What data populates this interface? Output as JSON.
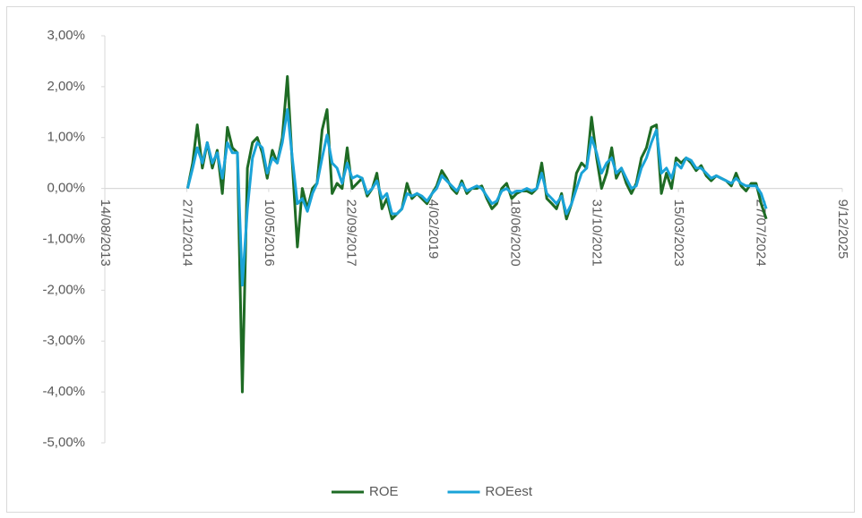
{
  "chart_data": {
    "type": "line",
    "x": [
      "2015-01-01",
      "2015-02-01",
      "2015-03-01",
      "2015-04-01",
      "2015-05-01",
      "2015-06-01",
      "2015-07-01",
      "2015-08-01",
      "2015-09-01",
      "2015-10-01",
      "2015-11-01",
      "2015-12-01",
      "2016-01-01",
      "2016-02-01",
      "2016-03-01",
      "2016-04-01",
      "2016-05-01",
      "2016-06-01",
      "2016-07-01",
      "2016-08-01",
      "2016-09-01",
      "2016-10-01",
      "2016-11-01",
      "2016-12-01",
      "2017-01-01",
      "2017-02-01",
      "2017-03-01",
      "2017-04-01",
      "2017-05-01",
      "2017-06-01",
      "2017-07-01",
      "2017-08-01",
      "2017-09-01",
      "2017-10-01",
      "2017-11-01",
      "2017-12-01",
      "2018-01-01",
      "2018-02-01",
      "2018-03-01",
      "2018-04-01",
      "2018-05-01",
      "2018-06-01",
      "2018-07-01",
      "2018-08-01",
      "2018-09-01",
      "2018-10-01",
      "2018-11-01",
      "2018-12-01",
      "2019-01-01",
      "2019-02-01",
      "2019-03-01",
      "2019-04-01",
      "2019-05-01",
      "2019-06-01",
      "2019-07-01",
      "2019-08-01",
      "2019-09-01",
      "2019-10-01",
      "2019-11-01",
      "2019-12-01",
      "2020-01-01",
      "2020-02-01",
      "2020-03-01",
      "2020-04-01",
      "2020-05-01",
      "2020-06-01",
      "2020-07-01",
      "2020-08-01",
      "2020-09-01",
      "2020-10-01",
      "2020-11-01",
      "2020-12-01",
      "2021-01-01",
      "2021-02-01",
      "2021-03-01",
      "2021-04-01",
      "2021-05-01",
      "2021-06-01",
      "2021-07-01",
      "2021-08-01",
      "2021-09-01",
      "2021-10-01",
      "2021-11-01",
      "2021-12-01",
      "2022-01-01",
      "2022-02-01",
      "2022-03-01",
      "2022-04-01",
      "2022-05-01",
      "2022-06-01",
      "2022-07-01",
      "2022-08-01",
      "2022-09-01",
      "2022-10-01",
      "2022-11-01",
      "2022-12-01",
      "2023-01-01",
      "2023-02-01",
      "2023-03-01",
      "2023-04-01",
      "2023-05-01",
      "2023-06-01",
      "2023-07-01",
      "2023-08-01",
      "2023-09-01",
      "2023-10-01",
      "2023-11-01",
      "2023-12-01",
      "2024-01-01",
      "2024-02-01",
      "2024-03-01",
      "2024-04-01",
      "2024-05-01",
      "2024-06-01",
      "2024-07-01",
      "2024-08-01",
      "2024-09-01"
    ],
    "series": [
      {
        "name": "ROE",
        "color": "#1e6b24",
        "values": [
          0.0,
          0.5,
          1.25,
          0.4,
          0.9,
          0.4,
          0.75,
          -0.1,
          1.2,
          0.8,
          0.7,
          -4.0,
          0.4,
          0.9,
          1.0,
          0.7,
          0.2,
          0.75,
          0.5,
          1.0,
          2.2,
          0.5,
          -1.15,
          0.0,
          -0.4,
          0.0,
          0.1,
          1.15,
          1.55,
          -0.1,
          0.1,
          0.0,
          0.8,
          0.0,
          0.1,
          0.2,
          -0.15,
          0.0,
          0.3,
          -0.4,
          -0.2,
          -0.6,
          -0.5,
          -0.4,
          0.1,
          -0.2,
          -0.1,
          -0.2,
          -0.3,
          -0.1,
          0.05,
          0.35,
          0.2,
          0.0,
          -0.1,
          0.15,
          -0.1,
          0.0,
          0.0,
          0.05,
          -0.2,
          -0.4,
          -0.3,
          0.0,
          0.1,
          -0.2,
          -0.1,
          -0.05,
          -0.05,
          -0.1,
          0.0,
          0.5,
          -0.2,
          -0.3,
          -0.4,
          -0.1,
          -0.6,
          -0.3,
          0.3,
          0.5,
          0.4,
          1.4,
          0.6,
          0.0,
          0.3,
          0.8,
          0.2,
          0.4,
          0.1,
          -0.1,
          0.1,
          0.6,
          0.8,
          1.2,
          1.25,
          -0.1,
          0.3,
          0.0,
          0.6,
          0.5,
          0.6,
          0.5,
          0.35,
          0.45,
          0.25,
          0.15,
          0.25,
          0.2,
          0.15,
          0.05,
          0.3,
          0.05,
          -0.05,
          0.1,
          0.1,
          -0.3,
          -0.6
        ]
      },
      {
        "name": "ROEest",
        "color": "#1aa3d8",
        "values": [
          0.0,
          0.4,
          0.8,
          0.5,
          0.9,
          0.5,
          0.7,
          0.2,
          0.9,
          0.7,
          0.7,
          -1.9,
          -0.4,
          0.6,
          0.9,
          0.8,
          0.3,
          0.6,
          0.5,
          0.9,
          1.55,
          0.6,
          -0.3,
          -0.2,
          -0.45,
          -0.1,
          0.1,
          0.6,
          1.05,
          0.5,
          0.4,
          0.1,
          0.5,
          0.2,
          0.25,
          0.2,
          -0.1,
          0.0,
          0.15,
          -0.2,
          -0.1,
          -0.5,
          -0.5,
          -0.4,
          -0.1,
          -0.15,
          -0.1,
          -0.15,
          -0.25,
          -0.1,
          0.0,
          0.25,
          0.15,
          0.05,
          -0.05,
          0.1,
          -0.05,
          0.0,
          0.05,
          0.0,
          -0.15,
          -0.3,
          -0.25,
          -0.05,
          0.0,
          -0.1,
          -0.05,
          -0.05,
          0.0,
          -0.05,
          0.0,
          0.3,
          -0.1,
          -0.2,
          -0.3,
          -0.15,
          -0.5,
          -0.3,
          0.0,
          0.3,
          0.4,
          1.0,
          0.7,
          0.3,
          0.5,
          0.6,
          0.3,
          0.4,
          0.2,
          0.0,
          0.05,
          0.4,
          0.6,
          0.9,
          1.15,
          0.3,
          0.4,
          0.2,
          0.5,
          0.4,
          0.6,
          0.55,
          0.4,
          0.4,
          0.3,
          0.2,
          0.25,
          0.2,
          0.15,
          0.1,
          0.2,
          0.1,
          0.05,
          0.05,
          0.05,
          -0.1,
          -0.4
        ]
      }
    ],
    "xlim": [
      "2013-08-14",
      "2025-12-09"
    ],
    "xticks": [
      {
        "value": "2013-08-14",
        "label": "14/08/2013"
      },
      {
        "value": "2014-12-27",
        "label": "27/12/2014"
      },
      {
        "value": "2016-05-10",
        "label": "10/05/2016"
      },
      {
        "value": "2017-09-22",
        "label": "22/09/2017"
      },
      {
        "value": "2019-02-04",
        "label": "4/02/2019"
      },
      {
        "value": "2020-06-18",
        "label": "18/06/2020"
      },
      {
        "value": "2021-10-31",
        "label": "31/10/2021"
      },
      {
        "value": "2023-03-15",
        "label": "15/03/2023"
      },
      {
        "value": "2024-07-27",
        "label": "27/07/2024"
      },
      {
        "value": "2025-12-09",
        "label": "9/12/2025"
      }
    ],
    "ylim": [
      -5,
      3
    ],
    "yticks": [
      {
        "value": 3,
        "label": "3,00%"
      },
      {
        "value": 2,
        "label": "2,00%"
      },
      {
        "value": 1,
        "label": "1,00%"
      },
      {
        "value": 0,
        "label": "0,00%"
      },
      {
        "value": -1,
        "label": "-1,00%"
      },
      {
        "value": -2,
        "label": "-2,00%"
      },
      {
        "value": -3,
        "label": "-3,00%"
      },
      {
        "value": -4,
        "label": "-4,00%"
      },
      {
        "value": -5,
        "label": "-5,00%"
      }
    ],
    "legend": "bottom"
  }
}
